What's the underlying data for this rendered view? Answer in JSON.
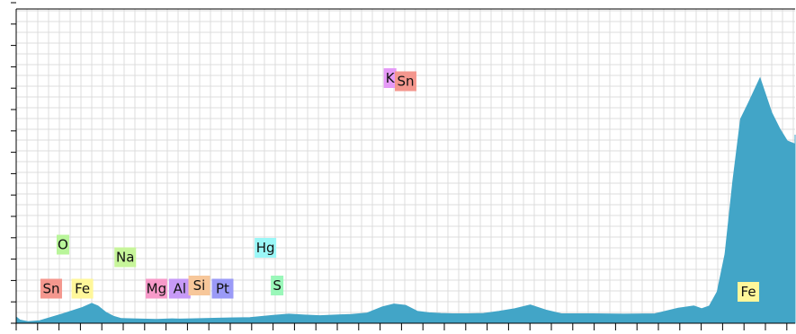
{
  "chart_data": {
    "type": "area",
    "title": "",
    "xlabel": "",
    "ylabel": "",
    "xlim": [
      0,
      20
    ],
    "ylim": [
      0,
      100
    ],
    "grid": true,
    "fill_color": "#42a5c7",
    "grid_color": "#dcdcdc",
    "x": [
      0.0,
      0.05,
      0.15,
      0.3,
      0.6,
      0.85,
      0.97,
      1.05,
      1.15,
      1.25,
      1.35,
      1.5,
      1.8,
      2.0,
      2.1,
      2.25,
      2.6,
      3.0,
      3.3,
      3.5,
      3.7,
      3.9,
      4.1,
      4.3,
      4.5,
      4.7,
      4.85,
      5.0,
      5.15,
      5.3,
      5.45,
      5.6,
      5.8,
      6.0,
      6.2,
      6.4,
      6.6,
      6.8,
      7.0,
      7.4,
      7.8,
      8.2,
      8.5,
      8.7,
      8.8,
      8.9,
      9.0,
      9.1,
      9.2,
      9.3,
      9.4,
      9.55,
      9.7,
      9.8,
      9.9,
      10.0,
      10.1,
      10.25,
      10.4,
      10.55,
      10.7,
      10.85,
      11.0,
      11.2,
      11.5,
      11.8,
      12.2,
      12.6,
      13.0,
      14.0,
      15.0,
      16.0,
      16.5,
      16.9,
      17.0,
      17.1,
      17.3,
      18.0,
      19.0,
      20.0
    ],
    "y": [
      2,
      1,
      0.5,
      0.8,
      3,
      5,
      6.3,
      5.5,
      3.5,
      2.2,
      1.5,
      1.4,
      1.2,
      1.4,
      1.3,
      1.4,
      1.6,
      1.8,
      2.5,
      2.9,
      2.6,
      2.4,
      2.6,
      2.8,
      3.2,
      5.2,
      6.1,
      5.7,
      3.8,
      3.3,
      3.1,
      3.0,
      3.0,
      3.1,
      3.8,
      4.6,
      5.8,
      4.2,
      3.0,
      3.0,
      2.9,
      3.0,
      4.8,
      5.5,
      4.6,
      5.5,
      10,
      22,
      45,
      65,
      70,
      78,
      67,
      62,
      58,
      57,
      60,
      55,
      40,
      23,
      18,
      14,
      12,
      8,
      4,
      2.9,
      2.6,
      2.1,
      1.8,
      1.8,
      1.9,
      1.9,
      2.0,
      2.0,
      2.4,
      2.1,
      2.0,
      2.0,
      1.9,
      2.0
    ],
    "annotations": [
      {
        "text": "Sn",
        "x": 0.45,
        "y": 11,
        "color": "#f4978e"
      },
      {
        "text": "Fe",
        "x": 0.85,
        "y": 11,
        "color": "#fff79a"
      },
      {
        "text": "O",
        "x": 0.6,
        "y": 25,
        "color": "#b9f59a"
      },
      {
        "text": "Na",
        "x": 1.4,
        "y": 21,
        "color": "#c7f59a"
      },
      {
        "text": "Mg",
        "x": 1.8,
        "y": 11,
        "color": "#f79ac9"
      },
      {
        "text": "Al",
        "x": 2.1,
        "y": 11,
        "color": "#c79af7"
      },
      {
        "text": "Si",
        "x": 2.35,
        "y": 12,
        "color": "#f7c79a"
      },
      {
        "text": "Pt",
        "x": 2.65,
        "y": 11,
        "color": "#9a9af7"
      },
      {
        "text": "Hg",
        "x": 3.2,
        "y": 24,
        "color": "#9af7f7"
      },
      {
        "text": "S",
        "x": 3.35,
        "y": 12,
        "color": "#9af7b9"
      },
      {
        "text": "K",
        "x": 4.8,
        "y": 78,
        "color": "#e59af7"
      },
      {
        "text": "Sn",
        "x": 5.0,
        "y": 77,
        "color": "#f4978e"
      },
      {
        "text": "Fe",
        "x": 9.4,
        "y": 10,
        "color": "#fff79a"
      }
    ]
  }
}
